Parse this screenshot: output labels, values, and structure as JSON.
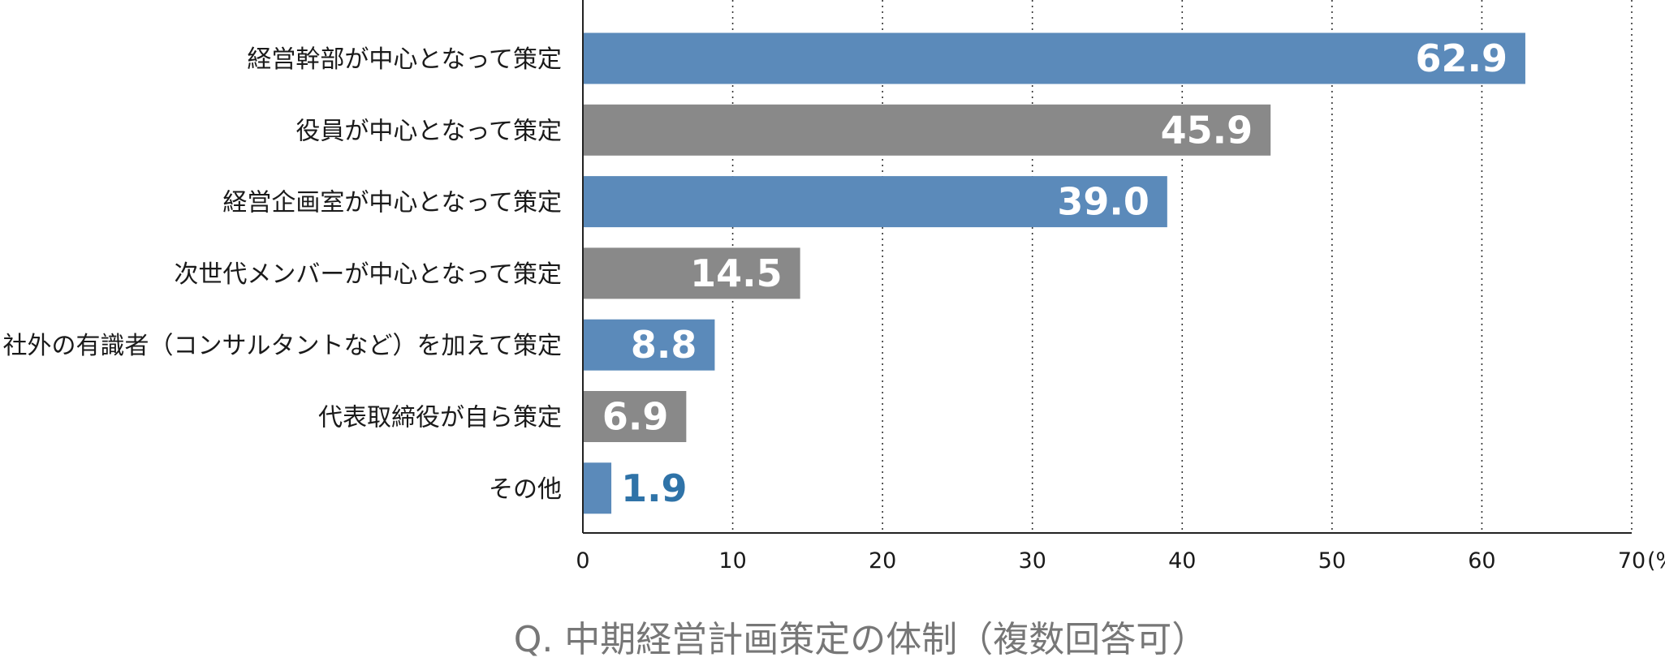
{
  "chart_data": {
    "type": "bar",
    "orientation": "horizontal",
    "categories": [
      "経営幹部が中心となって策定",
      "役員が中心となって策定",
      "経営企画室が中心となって策定",
      "次世代メンバーが中心となって策定",
      "社外の有識者（コンサルタントなど）を加えて策定",
      "代表取締役が自ら策定",
      "その他"
    ],
    "values": [
      62.9,
      45.9,
      39.0,
      14.5,
      8.8,
      6.9,
      1.9
    ],
    "value_labels": [
      "62.9",
      "45.9",
      "39.0",
      "14.5",
      "8.8",
      "6.9",
      "1.9"
    ],
    "bar_colors": [
      "#5b8aba",
      "#898989",
      "#5b8aba",
      "#898989",
      "#5b8aba",
      "#898989",
      "#5b8aba"
    ],
    "xlim": [
      0,
      70
    ],
    "xticks": [
      0,
      10,
      20,
      30,
      40,
      50,
      60,
      70
    ],
    "xtick_labels": [
      "0",
      "10",
      "20",
      "30",
      "40",
      "50",
      "60",
      "70"
    ],
    "x_unit": "(%)",
    "grid": "vertical dotted",
    "title": "Q. 中期経営計画策定の体制（複数回答可）",
    "xlabel": "",
    "ylabel": ""
  },
  "colors": {
    "blue_bar": "#5b8aba",
    "gray_bar": "#898989",
    "outside_label": "#2f73a8",
    "inside_label": "#ffffff",
    "caption_text": "#777777"
  }
}
